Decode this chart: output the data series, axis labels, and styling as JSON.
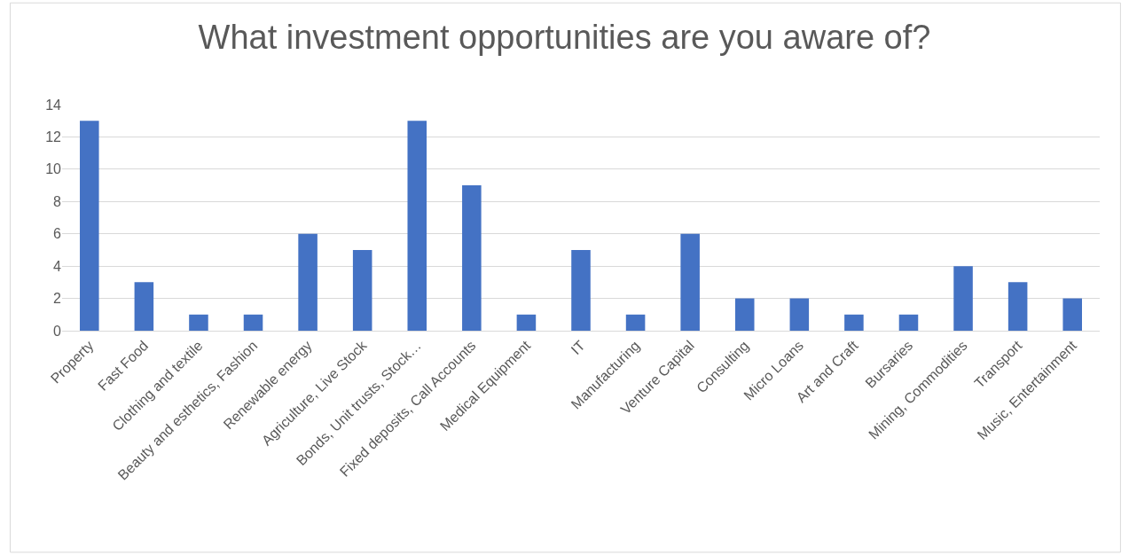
{
  "chart_data": {
    "type": "bar",
    "title": "What investment opportunities are you aware of?",
    "categories": [
      "Property",
      "Fast Food",
      "Clothing and textile",
      "Beauty and esthetics, Fashion",
      "Renewable energy",
      "Agriculture, Live Stock",
      "Bonds, Unit trusts, Stock…",
      "Fixed deposits, Call Accounts",
      "Medical Equipment",
      "IT",
      "Manufacturing",
      "Venture Capital",
      "Consulting",
      "Micro Loans",
      "Art and Craft",
      "Bursaries",
      "Mining, Commodities",
      "Transport",
      "Music, Entertainment"
    ],
    "values": [
      13,
      3,
      1,
      1,
      6,
      5,
      13,
      9,
      1,
      5,
      1,
      6,
      2,
      2,
      1,
      1,
      4,
      3,
      2
    ],
    "color": "#4472c4",
    "ylim": [
      0,
      14
    ],
    "yticks": [
      0,
      2,
      4,
      6,
      8,
      10,
      12,
      14
    ],
    "grid": "y"
  }
}
